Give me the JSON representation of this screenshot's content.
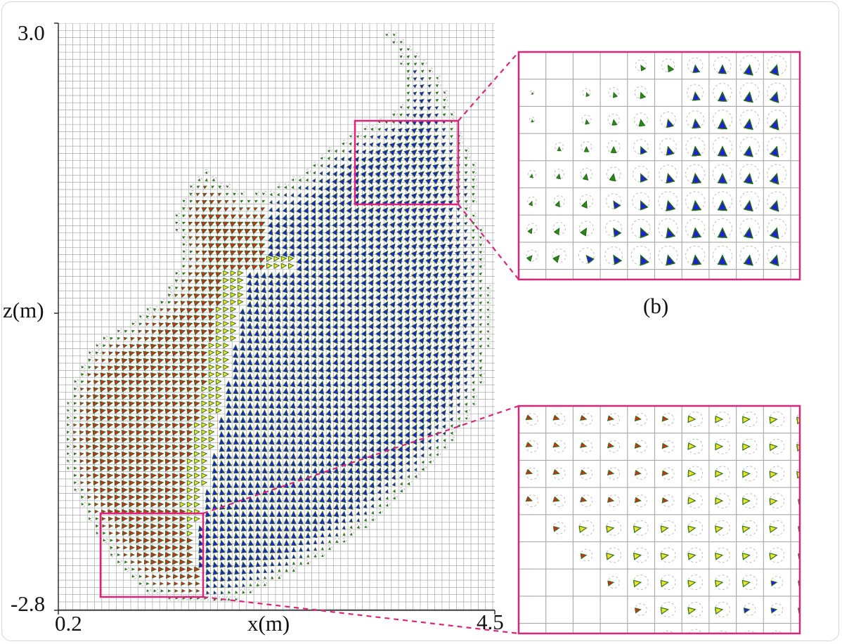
{
  "main_plot": {
    "y_max_label": "3.0",
    "y_min_label": "-2.8",
    "y_axis_label": "z(m)",
    "x_min_label": "0.2",
    "x_max_label": "4.5",
    "x_axis_label": "x(m)"
  },
  "inset_top": {
    "caption": "(b)"
  },
  "inset_bottom": {
    "caption": ""
  },
  "colors": {
    "red": "#d42a1c",
    "yellow": "#f2e12a",
    "blue": "#1f1fdc",
    "green": "#2a8a18",
    "highlight": "#e0237a",
    "grid": "#a8a8a8",
    "dashed_circle": "#bdbdbd"
  }
}
